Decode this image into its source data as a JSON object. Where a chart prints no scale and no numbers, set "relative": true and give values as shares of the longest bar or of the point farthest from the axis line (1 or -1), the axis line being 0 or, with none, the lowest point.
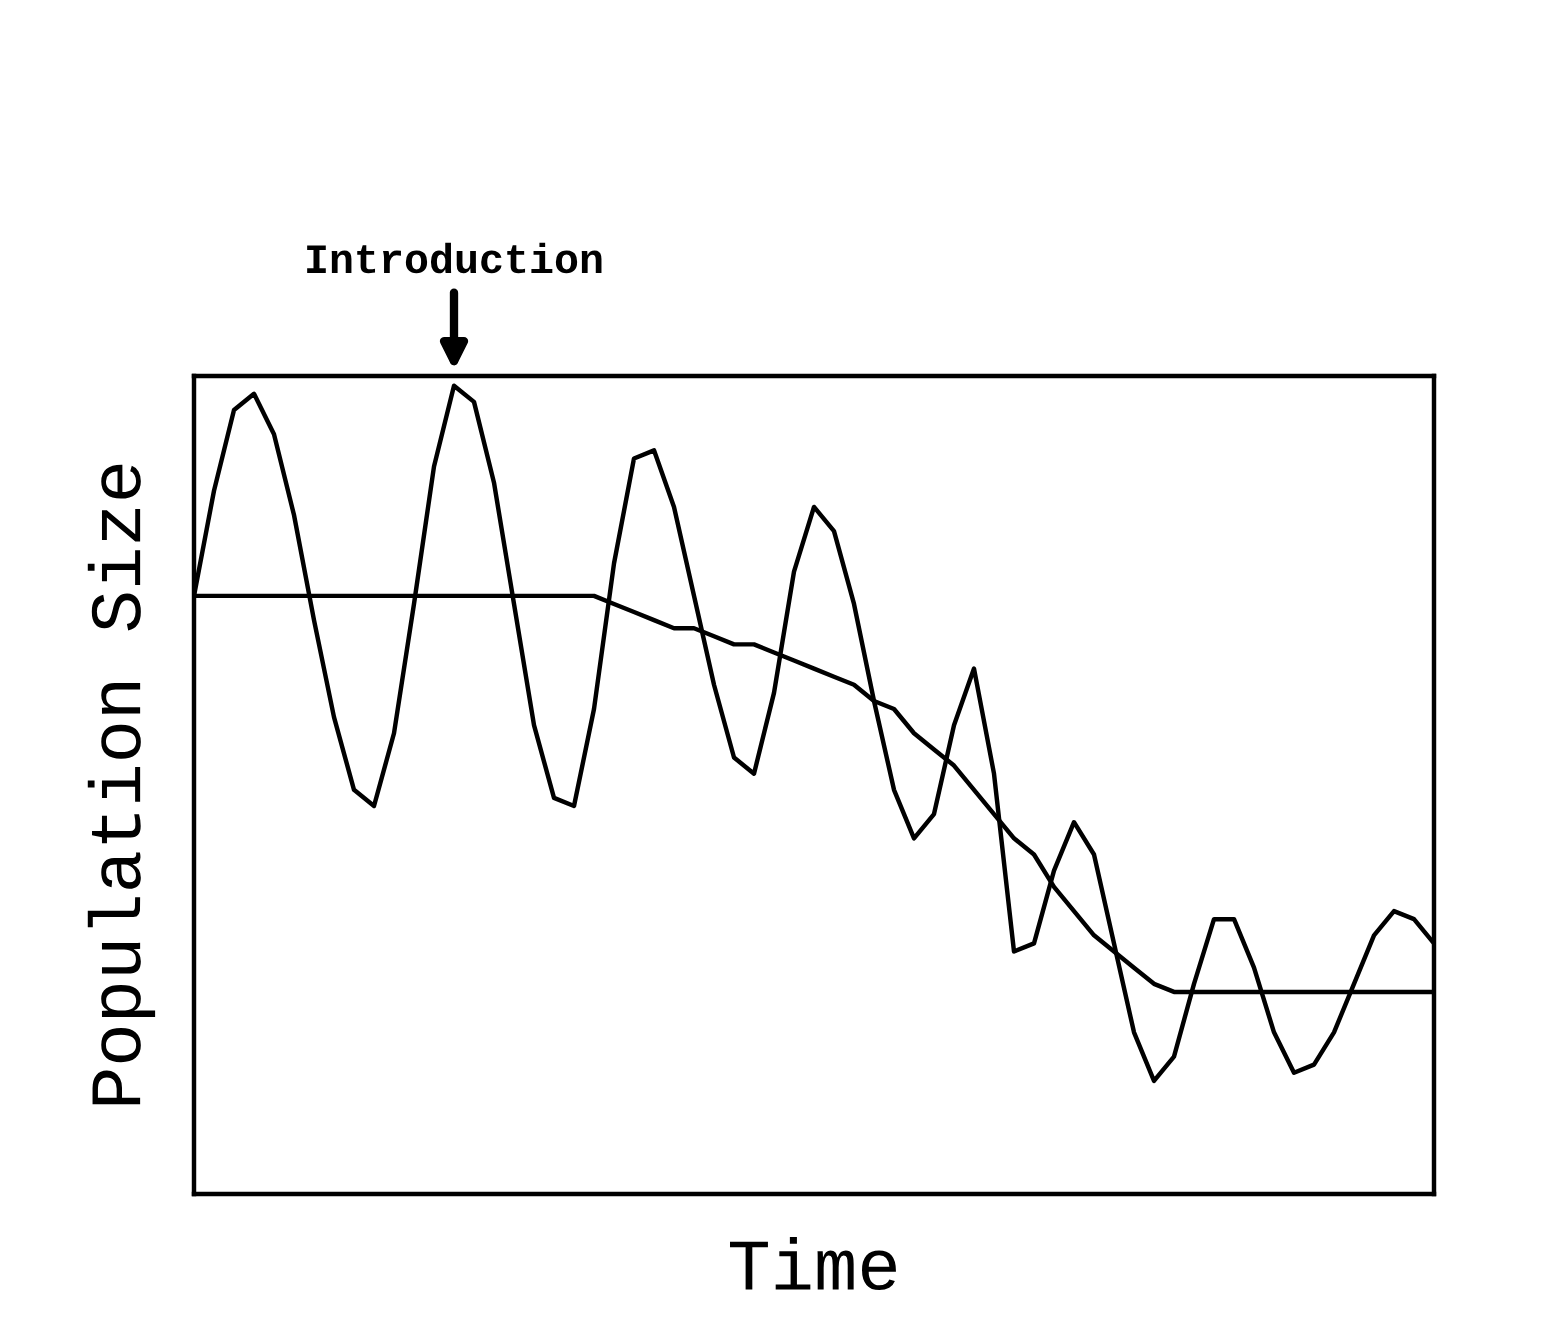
{
  "chart_data": {
    "type": "line",
    "relative": true,
    "xlabel": "Time",
    "ylabel": "Population Size",
    "categories": [
      null,
      null,
      null,
      null,
      null,
      null,
      null,
      null,
      null,
      null,
      null,
      null,
      null,
      null,
      null,
      null,
      null,
      null,
      null,
      null,
      null,
      null,
      null,
      null,
      null,
      null,
      null,
      null,
      null,
      null,
      null,
      null,
      null,
      null,
      null,
      null,
      null,
      null,
      null,
      null,
      null,
      null,
      null,
      null,
      null,
      null,
      null,
      null,
      null,
      null,
      null,
      null,
      null,
      null,
      null,
      null,
      null,
      null,
      null,
      null,
      null,
      null,
      null
    ],
    "annotations": [
      "Introduction"
    ],
    "grid": false,
    "legend": false,
    "marker": "none",
    "line_style": "solid",
    "series": [
      {
        "color": "#000000",
        "values": [
          0.74,
          0.87,
          0.97,
          0.99,
          0.94,
          0.84,
          0.71,
          0.59,
          0.5,
          0.48,
          0.57,
          0.73,
          0.9,
          1.0,
          0.98,
          0.88,
          0.73,
          0.58,
          0.49,
          0.48,
          0.6,
          0.78,
          0.91,
          0.92,
          0.85,
          0.74,
          0.63,
          0.54,
          0.52,
          0.62,
          0.77,
          0.85,
          0.82,
          0.73,
          0.61,
          0.5,
          0.44,
          0.47,
          0.58,
          0.65,
          0.52,
          0.3,
          0.31,
          0.4,
          0.46,
          0.42,
          0.31,
          0.2,
          0.14,
          0.17,
          0.26,
          0.34,
          0.34,
          0.28,
          0.2,
          0.15,
          0.16,
          0.2,
          0.26,
          0.32,
          0.35,
          0.34,
          0.31
        ]
      },
      {
        "color": "#000000",
        "values": [
          0.74,
          0.74,
          0.74,
          0.74,
          0.74,
          0.74,
          0.74,
          0.74,
          0.74,
          0.74,
          0.74,
          0.74,
          0.74,
          0.74,
          0.74,
          0.74,
          0.74,
          0.74,
          0.74,
          0.74,
          0.74,
          0.73,
          0.72,
          0.71,
          0.7,
          0.7,
          0.69,
          0.68,
          0.68,
          0.67,
          0.66,
          0.65,
          0.64,
          0.63,
          0.61,
          0.6,
          0.57,
          0.55,
          0.53,
          0.5,
          0.47,
          0.44,
          0.42,
          0.38,
          0.35,
          0.32,
          0.3,
          0.28,
          0.26,
          0.25,
          0.25,
          0.25,
          0.25,
          0.25,
          0.25,
          0.25,
          0.25,
          0.25,
          0.25,
          0.25,
          0.25,
          0.25,
          0.25
        ]
      }
    ]
  }
}
